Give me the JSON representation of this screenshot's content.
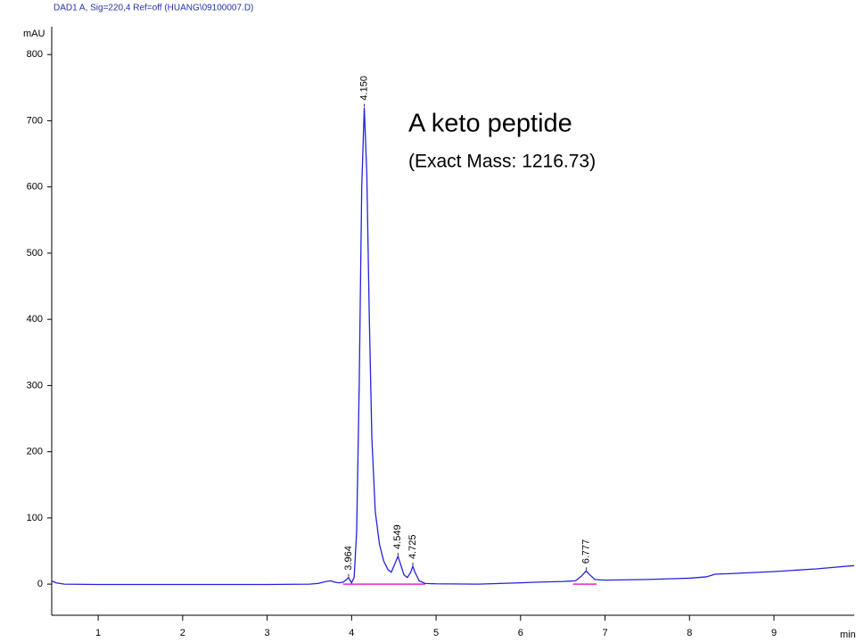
{
  "chart_data": {
    "type": "line",
    "title": "DAD1 A, Sig=220,4 Ref=off (HUANG\\09100007.D)",
    "y_label": "mAU",
    "x_label": "min",
    "annotations": [
      "A keto peptide",
      "(Exact Mass: 1216.73)"
    ],
    "xlim": [
      0.45,
      9.95
    ],
    "ylim": [
      -47,
      842
    ],
    "xticks": [
      1,
      2,
      3,
      4,
      5,
      6,
      7,
      8,
      9
    ],
    "yticks": [
      0,
      100,
      200,
      300,
      400,
      500,
      600,
      700,
      800
    ],
    "series": [
      {
        "color": "#2222dd",
        "x": [
          0.45,
          0.5,
          0.6,
          1,
          2,
          3,
          3.5,
          3.6,
          3.7,
          3.75,
          3.8,
          3.85,
          3.9,
          3.95,
          3.964,
          3.98,
          4.0,
          4.03,
          4.06,
          4.09,
          4.12,
          4.15,
          4.18,
          4.21,
          4.24,
          4.28,
          4.33,
          4.38,
          4.43,
          4.47,
          4.51,
          4.549,
          4.58,
          4.62,
          4.66,
          4.7,
          4.725,
          4.75,
          4.8,
          4.87,
          5.0,
          5.5,
          6.0,
          6.2,
          6.5,
          6.65,
          6.72,
          6.777,
          6.82,
          6.88,
          7.0,
          7.5,
          8.0,
          8.2,
          8.3,
          8.5,
          9.0,
          9.5,
          9.95
        ],
        "values": [
          5,
          2,
          0,
          -0.5,
          -0.5,
          -0.5,
          0,
          1,
          4,
          5,
          3,
          2,
          3,
          8,
          10,
          6,
          2,
          10,
          80,
          300,
          600,
          720,
          620,
          400,
          220,
          110,
          60,
          35,
          22,
          18,
          30,
          42,
          30,
          14,
          10,
          18,
          27,
          18,
          5,
          1,
          0.5,
          0,
          2,
          3,
          4,
          5,
          12,
          20,
          14,
          7,
          6,
          7,
          9,
          11,
          15,
          16,
          19,
          23,
          28
        ]
      }
    ],
    "peaks": [
      {
        "value": 3.964,
        "label": "3.964",
        "height": 10
      },
      {
        "value": 4.15,
        "label": "4.150",
        "height": 720
      },
      {
        "value": 4.549,
        "label": "4.549",
        "height": 42
      },
      {
        "value": 4.725,
        "label": "4.725",
        "height": 27
      },
      {
        "value": 6.777,
        "label": "6.777",
        "height": 20
      }
    ],
    "integration_baselines": [
      {
        "start": 3.9,
        "end": 4.87,
        "color": "#ee22cc"
      },
      {
        "start": 6.62,
        "end": 6.9,
        "color": "#ee22cc"
      }
    ]
  }
}
